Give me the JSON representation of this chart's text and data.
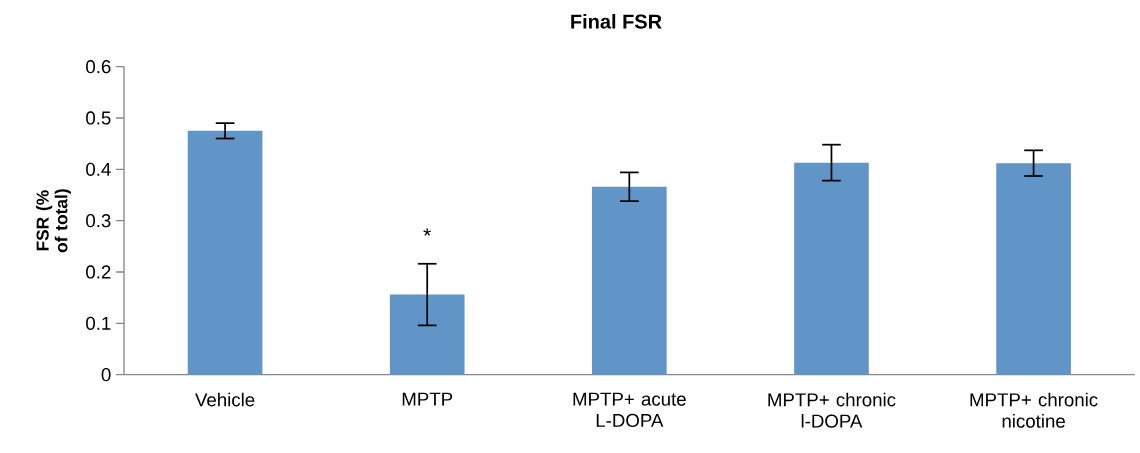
{
  "chart_data": {
    "type": "bar",
    "title": "Final FSR",
    "ylabel": "FSR (% of total)",
    "categories": [
      "Vehicle",
      "MPTP",
      "MPTP+ acute L-DOPA",
      "MPTP+ chronic l-DOPA",
      "MPTP+ chronic nicotine"
    ],
    "values": [
      0.475,
      0.156,
      0.366,
      0.413,
      0.412
    ],
    "errors": [
      0.015,
      0.06,
      0.028,
      0.035,
      0.025
    ],
    "color": "#6195c8",
    "ylim": [
      0,
      0.6
    ],
    "yticks": [
      0,
      0.1,
      0.2,
      0.3,
      0.4,
      0.5,
      0.6
    ],
    "annotations": [
      "*"
    ]
  }
}
